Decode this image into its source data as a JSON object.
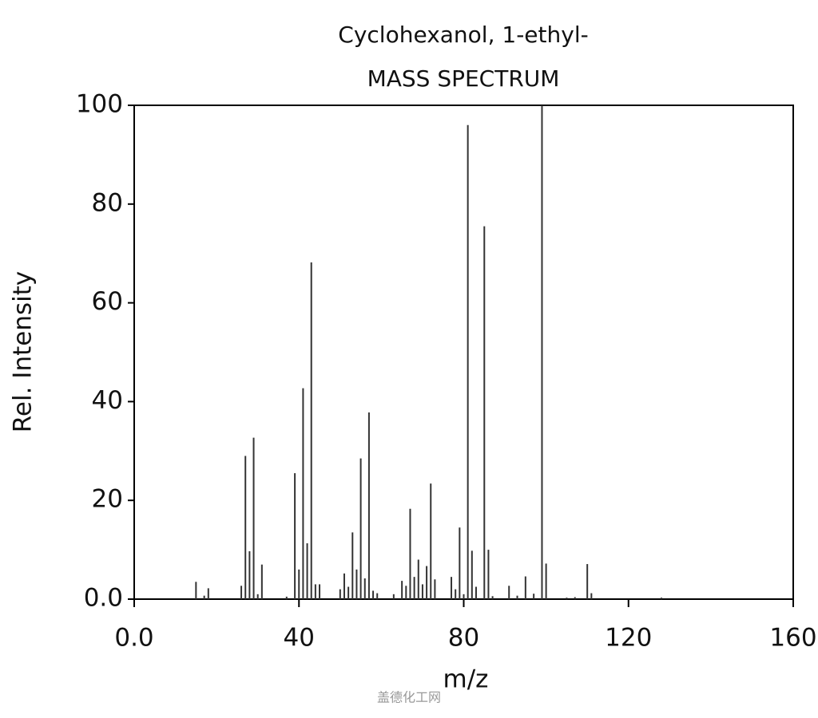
{
  "chart_data": {
    "type": "stem",
    "title": "Cyclohexanol, 1-ethyl-",
    "subtitle": "MASS SPECTRUM",
    "x_label": "m/z",
    "y_label": "Rel. Intensity",
    "watermark": "盖德化工网",
    "color": "#333333",
    "frame": true,
    "xlim": [
      0,
      160
    ],
    "ylim": [
      0,
      100
    ],
    "xticks": [
      {
        "value": 0,
        "label": "0.0"
      },
      40,
      80,
      120,
      160
    ],
    "yticks": [
      {
        "value": 0,
        "label": "0.0"
      },
      20,
      40,
      60,
      80,
      100
    ],
    "x": [
      15,
      17,
      18,
      26,
      27,
      28,
      29,
      30,
      31,
      37,
      39,
      40,
      41,
      42,
      43,
      44,
      45,
      50,
      51,
      52,
      53,
      54,
      55,
      56,
      57,
      58,
      59,
      63,
      65,
      66,
      67,
      68,
      69,
      70,
      71,
      72,
      73,
      77,
      78,
      79,
      80,
      81,
      82,
      83,
      85,
      86,
      87,
      91,
      93,
      95,
      97,
      99,
      100,
      105,
      107,
      110,
      111,
      128
    ],
    "values": [
      3.5,
      0.7,
      2.2,
      2.7,
      29,
      9.7,
      32.7,
      1,
      7,
      0.5,
      25.5,
      6,
      42.7,
      11.3,
      68.2,
      3,
      3,
      2,
      5.2,
      2.5,
      13.5,
      6,
      28.5,
      4.2,
      37.8,
      1.7,
      1.2,
      1,
      3.7,
      2.7,
      18.3,
      4.5,
      8,
      3,
      6.7,
      23.4,
      4,
      4.5,
      2,
      14.5,
      1,
      96,
      9.8,
      2.5,
      75.5,
      10,
      0.6,
      2.7,
      0.7,
      4.6,
      1.1,
      100,
      7.2,
      0.3,
      0.4,
      7.1,
      1.2,
      0.3
    ]
  }
}
